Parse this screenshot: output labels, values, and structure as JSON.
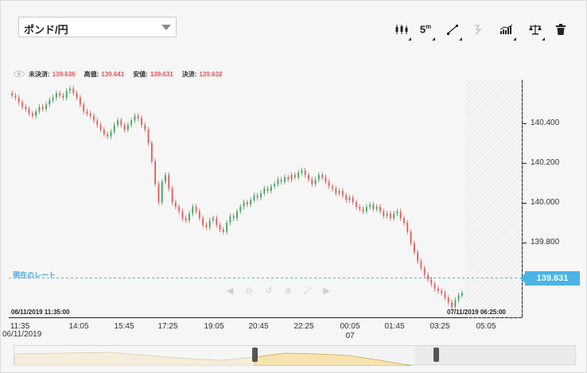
{
  "pair_select": {
    "label": "ポンド/円"
  },
  "toolbar": {
    "timeframe": "5",
    "timeframe_unit": "m"
  },
  "quote": {
    "last_label": "未決済:",
    "last_value": "139.636",
    "high_label": "高値:",
    "high_value": "139.641",
    "low_label": "安値:",
    "low_value": "139.631",
    "close_label": "決済:",
    "close_value": "139.632"
  },
  "current_rate": {
    "label": "現在のレート",
    "value": "139.631"
  },
  "range": {
    "start": "06/11/2019 11:35:00",
    "end": "07/11/2019 06:25:00"
  },
  "y_axis": {
    "ticks": [
      "140.400",
      "140.200",
      "140.000",
      "139.800"
    ]
  },
  "x_axis": {
    "ticks": [
      "11:35",
      "14:05",
      "15:45",
      "17:25",
      "19:05",
      "20:45",
      "22:25",
      "00:05",
      "01:45",
      "03:25",
      "05:05"
    ],
    "sub_tick": "07",
    "date": "06/11/2019"
  },
  "colors": {
    "up": "#3aa55a",
    "down": "#e05a5a",
    "accent": "#4bb4e6",
    "price_red": "#e8505b"
  },
  "chart_data": {
    "type": "candlestick",
    "ylim": [
      139.53,
      140.58
    ],
    "x_start": "11:35",
    "interval_minutes": 5,
    "close": [
      140.51,
      140.5,
      140.48,
      140.46,
      140.45,
      140.43,
      140.42,
      140.44,
      140.46,
      140.45,
      140.47,
      140.49,
      140.5,
      140.52,
      140.51,
      140.5,
      140.53,
      140.54,
      140.52,
      140.5,
      140.47,
      140.44,
      140.43,
      140.42,
      140.4,
      140.38,
      140.36,
      140.34,
      140.33,
      140.35,
      140.38,
      140.4,
      140.38,
      140.36,
      140.38,
      140.4,
      140.42,
      140.41,
      140.38,
      140.36,
      140.3,
      140.22,
      140.12,
      140.04,
      140.13,
      140.16,
      140.1,
      140.04,
      140.02,
      140.0,
      139.97,
      139.96,
      139.99,
      140.02,
      140.0,
      139.97,
      139.94,
      139.93,
      139.96,
      139.97,
      139.94,
      139.92,
      139.91,
      139.95,
      139.98,
      139.97,
      140.0,
      140.02,
      140.04,
      140.03,
      140.05,
      140.07,
      140.06,
      140.08,
      140.1,
      140.09,
      140.11,
      140.12,
      140.14,
      140.13,
      140.15,
      140.14,
      140.16,
      140.15,
      140.17,
      140.18,
      140.16,
      140.14,
      140.12,
      140.14,
      140.16,
      140.15,
      140.13,
      140.11,
      140.1,
      140.08,
      140.09,
      140.07,
      140.05,
      140.06,
      140.04,
      140.02,
      140.01,
      140.0,
      140.02,
      140.03,
      140.01,
      140.02,
      140.0,
      139.98,
      139.99,
      139.97,
      139.99,
      140.0,
      139.97,
      139.95,
      139.91,
      139.86,
      139.82,
      139.78,
      139.75,
      139.72,
      139.7,
      139.68,
      139.66,
      139.65,
      139.64,
      139.62,
      139.6,
      139.58,
      139.61,
      139.63,
      139.64
    ]
  }
}
